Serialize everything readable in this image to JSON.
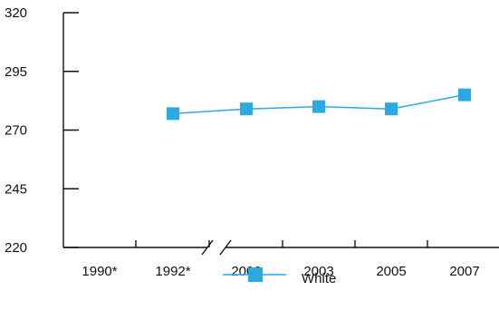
{
  "chart_data": {
    "type": "line",
    "categories": [
      "1990*",
      "1992*",
      "2000",
      "2003",
      "2005",
      "2007"
    ],
    "series": [
      {
        "name": "White",
        "values": [
          null,
          277,
          279,
          280,
          279,
          285
        ],
        "color": "#29abe2",
        "marker": "square"
      }
    ],
    "ylim": [
      220,
      320
    ],
    "yticks": [
      220,
      245,
      270,
      295,
      320
    ],
    "title": "",
    "xlabel": "",
    "ylabel": "",
    "axis_break": "between 1992* and 2000",
    "grid": false,
    "legend_position": "bottom-center"
  }
}
